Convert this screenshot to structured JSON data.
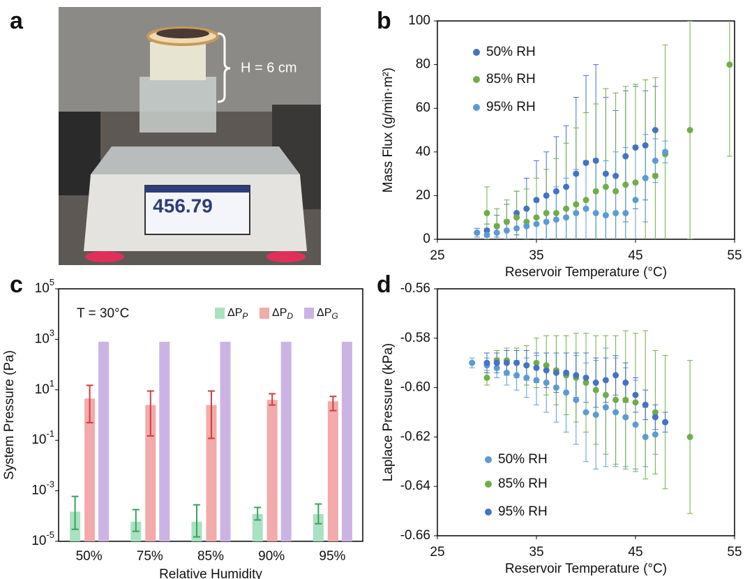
{
  "panel_labels": [
    "a",
    "b",
    "c",
    "d"
  ],
  "photo": {
    "annotation": "H = 6 cm",
    "reading": "456.79"
  },
  "chart_data": [
    {
      "type": "scatter",
      "xlabel": "Reservoir Temperature (°C)",
      "ylabel": "Mass Flux (g/min·m²)",
      "xlim": [
        25,
        55
      ],
      "xticks": [
        25,
        35,
        45,
        55
      ],
      "ylim": [
        0,
        100
      ],
      "yticks": [
        0,
        20,
        40,
        60,
        80,
        100
      ],
      "series": [
        {
          "name": "50% RH",
          "color": "#4472c4",
          "x": [
            29,
            30,
            31,
            32,
            33,
            34,
            35,
            36,
            37,
            38,
            39,
            40,
            41,
            42,
            43,
            44,
            45,
            46,
            47
          ],
          "values": [
            3,
            4,
            6,
            8,
            12,
            14,
            18,
            20,
            22,
            24,
            30,
            35,
            36,
            30,
            29,
            38,
            42,
            43,
            50
          ],
          "errors": [
            2,
            3,
            5,
            8,
            10,
            14,
            18,
            20,
            25,
            28,
            35,
            40,
            44,
            35,
            30,
            30,
            28,
            25,
            20
          ]
        },
        {
          "name": "85% RH",
          "color": "#70ad47",
          "x": [
            30,
            31,
            32,
            33,
            34,
            35,
            36,
            37,
            38,
            39,
            40,
            41,
            42,
            43,
            44,
            45,
            46,
            47,
            48,
            50.5,
            54.5
          ],
          "values": [
            12,
            6,
            8,
            10,
            8,
            10,
            12,
            12,
            14,
            16,
            18,
            22,
            24,
            22,
            25,
            26,
            28,
            29,
            39,
            50,
            80
          ],
          "errors": [
            12,
            8,
            10,
            12,
            15,
            18,
            20,
            25,
            30,
            35,
            40,
            40,
            45,
            45,
            45,
            45,
            45,
            45,
            50,
            50,
            42
          ]
        },
        {
          "name": "95% RH",
          "color": "#5b9bd5",
          "x": [
            29,
            30,
            31,
            32,
            33,
            34,
            35,
            36,
            37,
            38,
            39,
            40,
            41,
            42,
            43,
            44,
            45,
            46,
            47,
            48
          ],
          "values": [
            3,
            2,
            3,
            4,
            5,
            6,
            7,
            8,
            9,
            10,
            12,
            14,
            12,
            11,
            12,
            12,
            18,
            28,
            36,
            40
          ],
          "errors": [
            2,
            3,
            4,
            5,
            6,
            8,
            10,
            12,
            15,
            18,
            20,
            22,
            25,
            25,
            28,
            30,
            25,
            20,
            10,
            5
          ]
        }
      ]
    },
    {
      "type": "bar",
      "log_scale": true,
      "xlabel": "Relative Humidity",
      "ylabel": "System Pressure (Pa)",
      "annotation": "T = 30°C",
      "categories": [
        "50%",
        "75%",
        "85%",
        "90%",
        "95%"
      ],
      "ylim": [
        1e-05,
        100000
      ],
      "yticks": [
        {
          "value": 1e-05,
          "label": "10",
          "exponent": "-5"
        },
        {
          "value": 0.001,
          "label": "10",
          "exponent": "-3"
        },
        {
          "value": 0.1,
          "label": "10",
          "exponent": "-1"
        },
        {
          "value": 10,
          "label": "10",
          "exponent": "1"
        },
        {
          "value": 1000,
          "label": "10",
          "exponent": "3"
        },
        {
          "value": 100000,
          "label": "10",
          "exponent": "5"
        }
      ],
      "series": [
        {
          "name": "ΔP",
          "subscript": "P",
          "color": "#a8e2c0",
          "error_color": "#3aa05e",
          "values": [
            0.00015,
            6e-05,
            6e-05,
            0.00012,
            0.00012
          ],
          "errors": [
            [
              3e-05,
              0.0006
            ],
            [
              2.5e-05,
              0.00018
            ],
            [
              1.5e-05,
              0.00028
            ],
            [
              7e-05,
              0.00022
            ],
            [
              5e-05,
              0.0003
            ]
          ]
        },
        {
          "name": "ΔP",
          "subscript": "D",
          "color": "#f2aaaa",
          "error_color": "#d23c3c",
          "values": [
            4.5,
            2.5,
            2.5,
            4,
            3.5
          ],
          "errors": [
            [
              0.5,
              15
            ],
            [
              0.15,
              9
            ],
            [
              0.12,
              9
            ],
            [
              2.5,
              7
            ],
            [
              1.5,
              5.5
            ]
          ]
        },
        {
          "name": "ΔP",
          "subscript": "G",
          "color": "#cbb4e4",
          "values": [
            800,
            800,
            800,
            800,
            800
          ]
        }
      ]
    },
    {
      "type": "scatter",
      "xlabel": "Reservoir Temperature (°C)",
      "ylabel": "Laplace Pressure (kPa)",
      "xlim": [
        25,
        55
      ],
      "xticks": [
        25,
        35,
        45,
        55
      ],
      "ylim": [
        -0.66,
        -0.56
      ],
      "yticks": [
        -0.66,
        -0.64,
        -0.62,
        {
          "value": -0.6,
          "label": "-0.60"
        },
        -0.58,
        -0.56
      ],
      "series": [
        {
          "name": "50% RH",
          "color": "#5b9bd5",
          "x": [
            28.5,
            30,
            31,
            32,
            33,
            34,
            35,
            36,
            37,
            38,
            39,
            40,
            41,
            42,
            43,
            44,
            45,
            46,
            47
          ],
          "values": [
            -0.59,
            -0.591,
            -0.592,
            -0.594,
            -0.595,
            -0.596,
            -0.597,
            -0.598,
            -0.6,
            -0.602,
            -0.605,
            -0.61,
            -0.611,
            -0.608,
            -0.61,
            -0.612,
            -0.615,
            -0.62,
            -0.619
          ],
          "errors": [
            0.002,
            0.003,
            0.004,
            0.005,
            0.006,
            0.008,
            0.01,
            0.012,
            0.014,
            0.016,
            0.018,
            0.02,
            0.022,
            0.024,
            0.022,
            0.02,
            0.018,
            0.012,
            0.008
          ]
        },
        {
          "name": "85% RH",
          "color": "#70ad47",
          "x": [
            30,
            31,
            32,
            33,
            34,
            35,
            36,
            37,
            38,
            39,
            40,
            41,
            42,
            43,
            44,
            45,
            46,
            47,
            48,
            50.5
          ],
          "values": [
            -0.596,
            -0.589,
            -0.589,
            -0.59,
            -0.591,
            -0.59,
            -0.591,
            -0.593,
            -0.595,
            -0.596,
            -0.598,
            -0.601,
            -0.603,
            -0.605,
            -0.605,
            -0.606,
            -0.607,
            -0.61,
            -0.614,
            -0.62
          ],
          "errors": [
            0.003,
            0.004,
            0.005,
            0.006,
            0.008,
            0.01,
            0.012,
            0.014,
            0.016,
            0.018,
            0.02,
            0.022,
            0.024,
            0.026,
            0.028,
            0.028,
            0.03,
            0.025,
            0.027,
            0.031
          ]
        },
        {
          "name": "95% RH",
          "color": "#4472c4",
          "x": [
            30,
            31,
            32,
            33,
            34,
            35,
            36,
            37,
            38,
            39,
            40,
            41,
            42,
            43,
            44,
            45,
            46,
            47,
            48
          ],
          "values": [
            -0.59,
            -0.59,
            -0.59,
            -0.59,
            -0.591,
            -0.592,
            -0.593,
            -0.594,
            -0.594,
            -0.595,
            -0.596,
            -0.598,
            -0.597,
            -0.595,
            -0.598,
            -0.603,
            -0.607,
            -0.612,
            -0.614
          ],
          "errors": [
            0.004,
            0.004,
            0.005,
            0.005,
            0.006,
            0.006,
            0.007,
            0.008,
            0.008,
            0.009,
            0.01,
            0.01,
            0.009,
            0.008,
            0.008,
            0.007,
            0.006,
            0.005,
            0.004
          ]
        }
      ]
    }
  ]
}
